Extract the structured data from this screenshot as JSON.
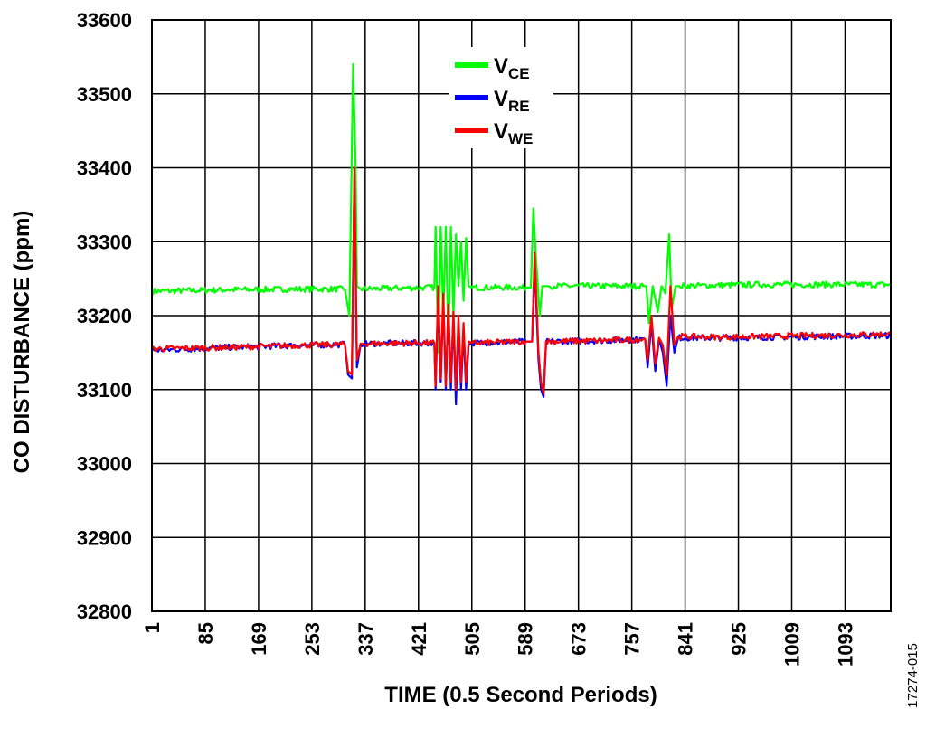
{
  "chart_data": {
    "type": "line",
    "xlabel": "TIME (0.5 Second Periods)",
    "ylabel": "CO DISTURBANCE (ppm)",
    "ylim": [
      32800,
      33600
    ],
    "xlim": [
      1,
      1165
    ],
    "y_ticks": [
      "33600",
      "33500",
      "33400",
      "33300",
      "33200",
      "33100",
      "33000",
      "32900",
      "32800"
    ],
    "x_ticks": [
      "1",
      "85",
      "169",
      "253",
      "337",
      "421",
      "505",
      "589",
      "673",
      "757",
      "841",
      "925",
      "1009",
      "1093"
    ],
    "grid": true,
    "legend_position": "top-center",
    "series": [
      {
        "name": "V",
        "subscript": "CE",
        "color": "#00ff00",
        "points": [
          [
            1,
            33233
          ],
          [
            120,
            33235
          ],
          [
            240,
            33236
          ],
          [
            305,
            33236
          ],
          [
            312,
            33200
          ],
          [
            318,
            33540
          ],
          [
            322,
            33400
          ],
          [
            324,
            33240
          ],
          [
            330,
            33236
          ],
          [
            430,
            33238
          ],
          [
            446,
            33238
          ],
          [
            448,
            33320
          ],
          [
            452,
            33150
          ],
          [
            456,
            33320
          ],
          [
            460,
            33200
          ],
          [
            464,
            33320
          ],
          [
            468,
            33160
          ],
          [
            472,
            33320
          ],
          [
            476,
            33200
          ],
          [
            480,
            33310
          ],
          [
            484,
            33240
          ],
          [
            488,
            33300
          ],
          [
            492,
            33220
          ],
          [
            496,
            33305
          ],
          [
            500,
            33240
          ],
          [
            504,
            33238
          ],
          [
            590,
            33238
          ],
          [
            598,
            33238
          ],
          [
            602,
            33345
          ],
          [
            606,
            33280
          ],
          [
            612,
            33200
          ],
          [
            616,
            33240
          ],
          [
            625,
            33240
          ],
          [
            700,
            33240
          ],
          [
            775,
            33240
          ],
          [
            780,
            33240
          ],
          [
            784,
            33190
          ],
          [
            790,
            33240
          ],
          [
            798,
            33205
          ],
          [
            804,
            33240
          ],
          [
            810,
            33230
          ],
          [
            816,
            33310
          ],
          [
            820,
            33210
          ],
          [
            826,
            33240
          ],
          [
            832,
            33240
          ],
          [
            950,
            33242
          ],
          [
            1165,
            33242
          ]
        ]
      },
      {
        "name": "V",
        "subscript": "RE",
        "color": "#0000ff",
        "points": [
          [
            1,
            33153
          ],
          [
            120,
            33157
          ],
          [
            240,
            33160
          ],
          [
            305,
            33161
          ],
          [
            310,
            33120
          ],
          [
            316,
            33115
          ],
          [
            320,
            33380
          ],
          [
            324,
            33130
          ],
          [
            330,
            33162
          ],
          [
            420,
            33163
          ],
          [
            446,
            33163
          ],
          [
            448,
            33100
          ],
          [
            452,
            33230
          ],
          [
            456,
            33110
          ],
          [
            460,
            33220
          ],
          [
            464,
            33100
          ],
          [
            468,
            33210
          ],
          [
            472,
            33100
          ],
          [
            476,
            33200
          ],
          [
            480,
            33080
          ],
          [
            484,
            33190
          ],
          [
            488,
            33100
          ],
          [
            492,
            33180
          ],
          [
            496,
            33100
          ],
          [
            500,
            33160
          ],
          [
            506,
            33163
          ],
          [
            590,
            33165
          ],
          [
            600,
            33165
          ],
          [
            604,
            33270
          ],
          [
            610,
            33140
          ],
          [
            614,
            33100
          ],
          [
            618,
            33090
          ],
          [
            622,
            33165
          ],
          [
            700,
            33166
          ],
          [
            778,
            33168
          ],
          [
            782,
            33130
          ],
          [
            788,
            33190
          ],
          [
            794,
            33125
          ],
          [
            800,
            33168
          ],
          [
            806,
            33150
          ],
          [
            812,
            33105
          ],
          [
            818,
            33200
          ],
          [
            824,
            33150
          ],
          [
            830,
            33170
          ],
          [
            900,
            33170
          ],
          [
            1165,
            33173
          ]
        ]
      },
      {
        "name": "V",
        "subscript": "WE",
        "color": "#ff0000",
        "points": [
          [
            1,
            33155
          ],
          [
            120,
            33157
          ],
          [
            240,
            33160
          ],
          [
            305,
            33161
          ],
          [
            310,
            33125
          ],
          [
            316,
            33120
          ],
          [
            320,
            33400
          ],
          [
            324,
            33140
          ],
          [
            330,
            33162
          ],
          [
            420,
            33163
          ],
          [
            446,
            33163
          ],
          [
            448,
            33105
          ],
          [
            452,
            33240
          ],
          [
            456,
            33115
          ],
          [
            460,
            33230
          ],
          [
            464,
            33105
          ],
          [
            468,
            33215
          ],
          [
            472,
            33110
          ],
          [
            476,
            33205
          ],
          [
            480,
            33100
          ],
          [
            484,
            33200
          ],
          [
            488,
            33110
          ],
          [
            492,
            33190
          ],
          [
            496,
            33110
          ],
          [
            500,
            33165
          ],
          [
            506,
            33163
          ],
          [
            590,
            33165
          ],
          [
            600,
            33165
          ],
          [
            604,
            33285
          ],
          [
            610,
            33150
          ],
          [
            614,
            33110
          ],
          [
            618,
            33095
          ],
          [
            622,
            33165
          ],
          [
            700,
            33166
          ],
          [
            778,
            33168
          ],
          [
            782,
            33140
          ],
          [
            788,
            33200
          ],
          [
            794,
            33135
          ],
          [
            800,
            33170
          ],
          [
            806,
            33160
          ],
          [
            812,
            33120
          ],
          [
            818,
            33240
          ],
          [
            824,
            33160
          ],
          [
            830,
            33172
          ],
          [
            900,
            33171
          ],
          [
            1165,
            33175
          ]
        ]
      }
    ]
  },
  "figure_id": "17274-015"
}
